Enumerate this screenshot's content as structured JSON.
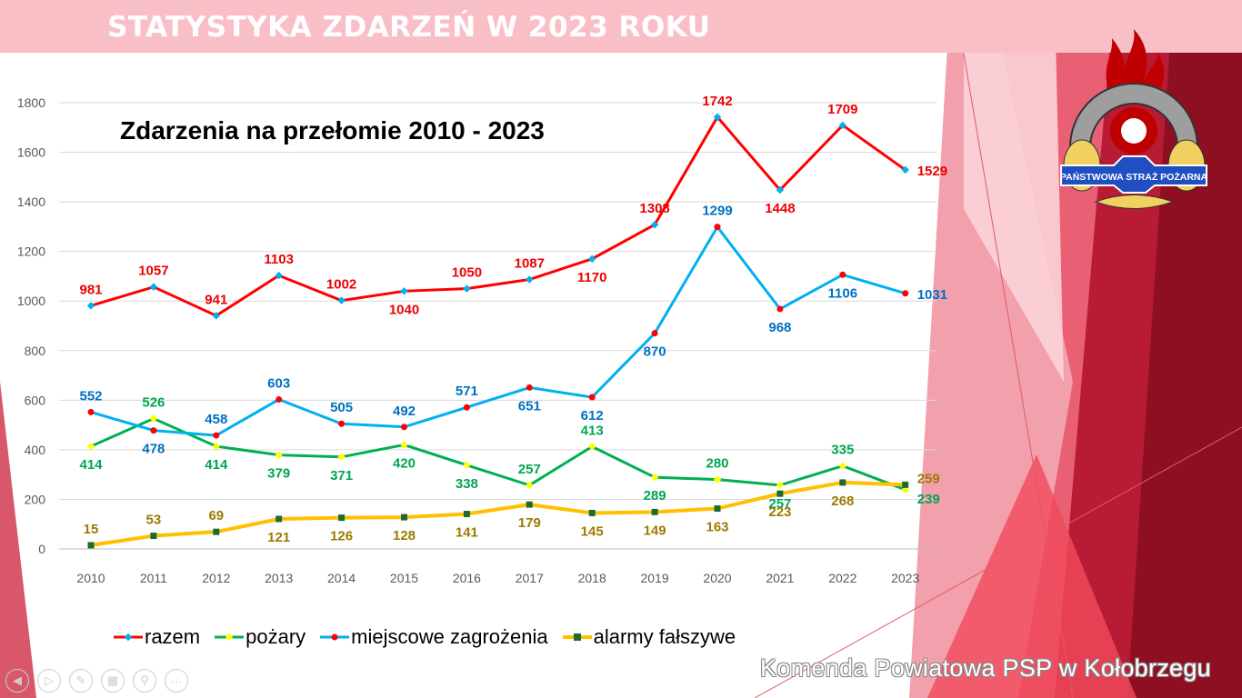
{
  "slide": {
    "title": "STATYSTYKA ZDARZEŃ W 2023 ROKU",
    "footer": "Komenda Powiatowa PSP w Kołobrzegu",
    "logo_text": "PAŃSTWOWA STRAŻ POŻARNA",
    "nav_icons": [
      "previous-icon",
      "next-icon",
      "pen-icon",
      "slides-icon",
      "zoom-icon",
      "more-icon"
    ]
  },
  "chart_data": {
    "type": "line",
    "title": "Zdarzenia na przełomie 2010 - 2023",
    "categories": [
      "2010",
      "2011",
      "2012",
      "2013",
      "2014",
      "2015",
      "2016",
      "2017",
      "2018",
      "2019",
      "2020",
      "2021",
      "2022",
      "2023"
    ],
    "ylim": [
      0,
      1800
    ],
    "yticks": [
      "0",
      "200",
      "400",
      "600",
      "800",
      "1000",
      "1200",
      "1400",
      "1600",
      "1800"
    ],
    "grid": true,
    "legend_position": "bottom",
    "series": [
      {
        "name": "razem",
        "line_color": "#ff0000",
        "marker_color": "#00b0f0",
        "label_color": "#ee0000",
        "values": [
          981,
          1057,
          941,
          1103,
          1002,
          1040,
          1050,
          1087,
          1170,
          1308,
          1742,
          1448,
          1709,
          1529
        ]
      },
      {
        "name": "pożary",
        "line_color": "#00b050",
        "marker_color": "#ffff00",
        "label_color": "#00a550",
        "values": [
          414,
          526,
          414,
          379,
          371,
          420,
          338,
          257,
          413,
          289,
          280,
          257,
          335,
          239
        ]
      },
      {
        "name": "miejscowe zagrożenia",
        "line_color": "#00b0f0",
        "marker_color": "#ff0000",
        "label_color": "#0070c0",
        "values": [
          552,
          478,
          458,
          603,
          505,
          492,
          571,
          651,
          612,
          870,
          1299,
          968,
          1106,
          1031
        ]
      },
      {
        "name": "alarmy fałszywe",
        "line_color": "#ffc000",
        "marker_color": "#1e6b30",
        "label_color": "#9c7a00",
        "values": [
          15,
          53,
          69,
          121,
          126,
          128,
          141,
          179,
          145,
          149,
          163,
          223,
          268,
          259
        ]
      }
    ]
  }
}
